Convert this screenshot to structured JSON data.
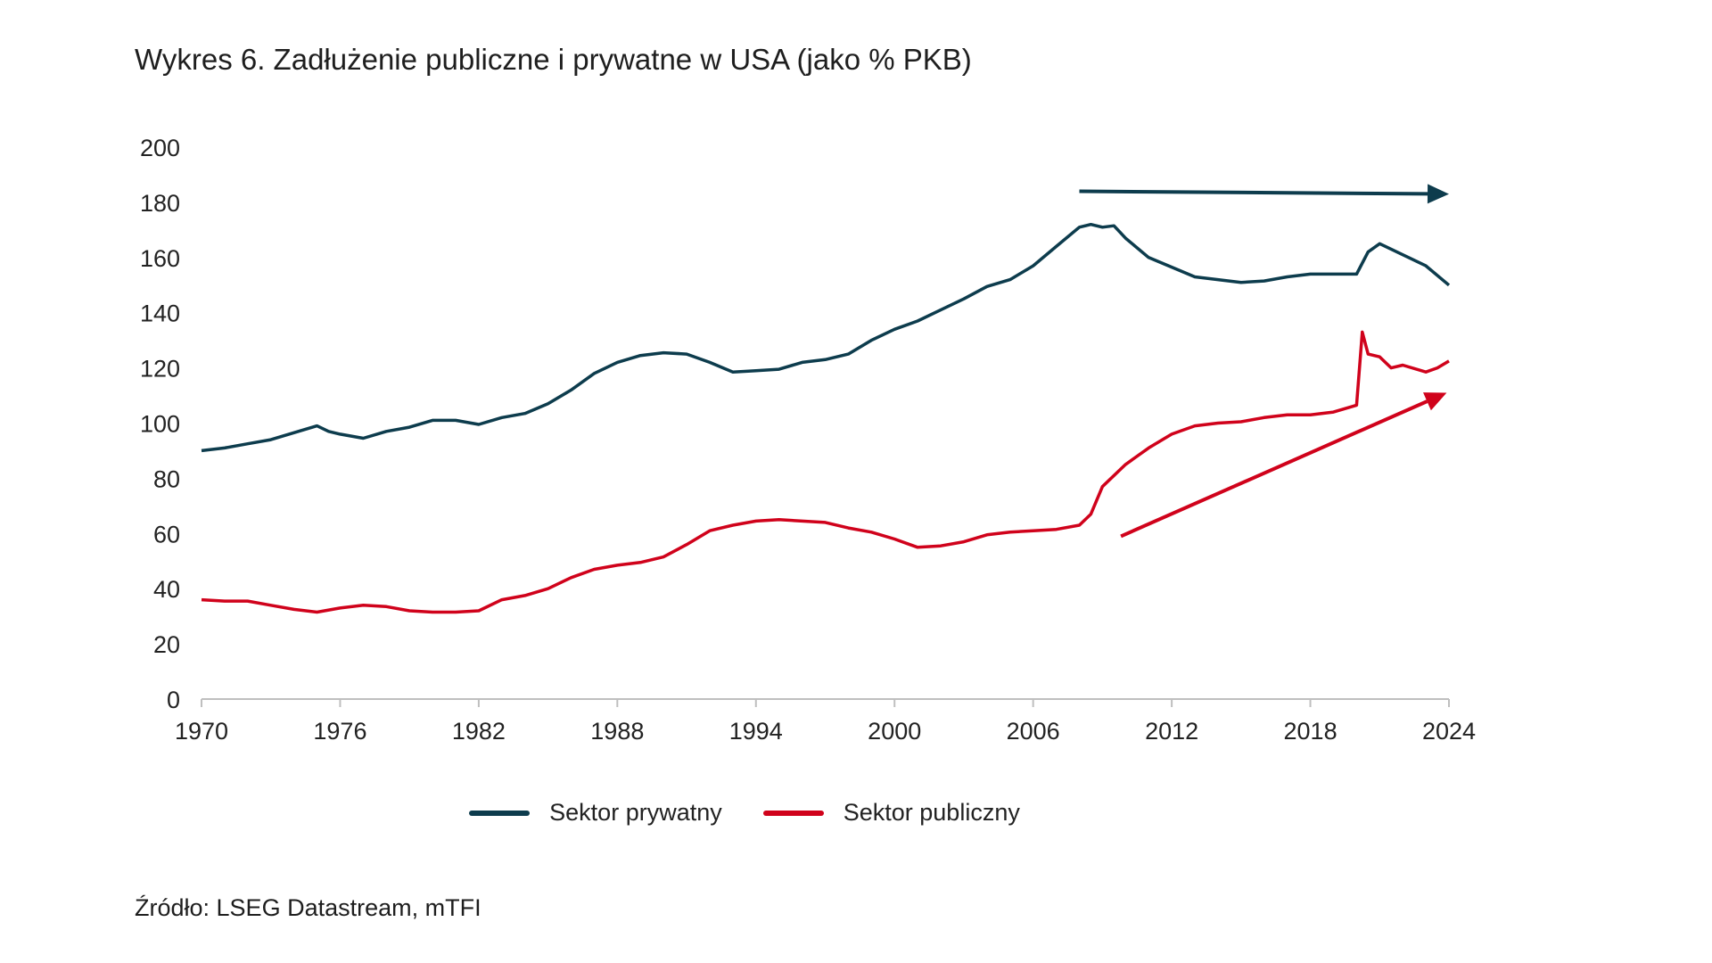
{
  "title": "Wykres 6. Zadłużenie publiczne i prywatne w USA (jako % PKB)",
  "source": "Źródło: LSEG Datastream, mTFI",
  "chart_data": {
    "type": "line",
    "title": "Wykres 6. Zadłużenie publiczne i prywatne w USA (jako % PKB)",
    "xlabel": "",
    "ylabel": "",
    "xlim": [
      1970,
      2024
    ],
    "ylim": [
      0,
      200
    ],
    "xticks": [
      1970,
      1976,
      1982,
      1988,
      1994,
      2000,
      2006,
      2012,
      2018,
      2024
    ],
    "yticks": [
      0,
      20,
      40,
      60,
      80,
      100,
      120,
      140,
      160,
      180,
      200
    ],
    "grid": false,
    "legend_position": "bottom",
    "series": [
      {
        "name": "Sektor prywatny",
        "color": "#0d3c4d",
        "x": [
          1970,
          1971,
          1972,
          1973,
          1974,
          1975,
          1975.5,
          1976,
          1977,
          1978,
          1979,
          1980,
          1981,
          1982,
          1983,
          1984,
          1985,
          1986,
          1987,
          1988,
          1989,
          1990,
          1991,
          1992,
          1993,
          1994,
          1995,
          1996,
          1997,
          1998,
          1999,
          2000,
          2001,
          2002,
          2003,
          2004,
          2005,
          2006,
          2007,
          2008,
          2008.5,
          2009,
          2009.5,
          2010,
          2011,
          2012,
          2013,
          2014,
          2015,
          2016,
          2017,
          2018,
          2019,
          2020,
          2020.5,
          2021,
          2022,
          2023,
          2024
        ],
        "values": [
          90,
          91,
          92.5,
          94,
          96.5,
          99,
          97,
          96,
          94.5,
          97,
          98.5,
          101,
          101,
          99.5,
          102,
          103.5,
          107,
          112,
          118,
          122,
          124.5,
          125.5,
          125,
          122,
          118.5,
          119,
          119.5,
          122,
          123,
          125,
          130,
          134,
          137,
          141,
          145,
          149.5,
          152,
          157,
          164,
          171,
          172,
          171,
          171.5,
          167,
          160,
          156.5,
          153,
          152,
          151,
          151.5,
          153,
          154,
          154,
          154,
          162,
          165,
          161,
          157,
          150
        ]
      },
      {
        "name": "Sektor publiczny",
        "color": "#d0021b",
        "x": [
          1970,
          1971,
          1972,
          1973,
          1974,
          1975,
          1976,
          1977,
          1978,
          1979,
          1980,
          1981,
          1982,
          1983,
          1984,
          1985,
          1986,
          1987,
          1988,
          1989,
          1990,
          1991,
          1992,
          1993,
          1994,
          1995,
          1996,
          1997,
          1998,
          1999,
          2000,
          2001,
          2002,
          2003,
          2004,
          2005,
          2006,
          2007,
          2008,
          2008.5,
          2009,
          2010,
          2011,
          2012,
          2013,
          2014,
          2015,
          2016,
          2017,
          2018,
          2019,
          2020,
          2020.25,
          2020.5,
          2021,
          2021.5,
          2022,
          2023,
          2023.5,
          2024
        ],
        "values": [
          36,
          35.5,
          35.5,
          34,
          32.5,
          31.5,
          33,
          34,
          33.5,
          32,
          31.5,
          31.5,
          32,
          36,
          37.5,
          40,
          44,
          47,
          48.5,
          49.5,
          51.5,
          56,
          61,
          63,
          64.5,
          65,
          64.5,
          64,
          62,
          60.5,
          58,
          55,
          55.5,
          57,
          59.5,
          60.5,
          61,
          61.5,
          63,
          67,
          77,
          85,
          91,
          96,
          99,
          100,
          100.5,
          102,
          103,
          103,
          104,
          106.5,
          133,
          125,
          124,
          120,
          121,
          118.5,
          120,
          122.5
        ]
      }
    ],
    "annotations": [
      {
        "type": "arrow",
        "color": "#0d3c4d",
        "from": [
          2008,
          184
        ],
        "to": [
          2024,
          183
        ]
      },
      {
        "type": "arrow",
        "color": "#d0021b",
        "from": [
          2009.8,
          59
        ],
        "to": [
          2023.9,
          111
        ]
      }
    ]
  }
}
